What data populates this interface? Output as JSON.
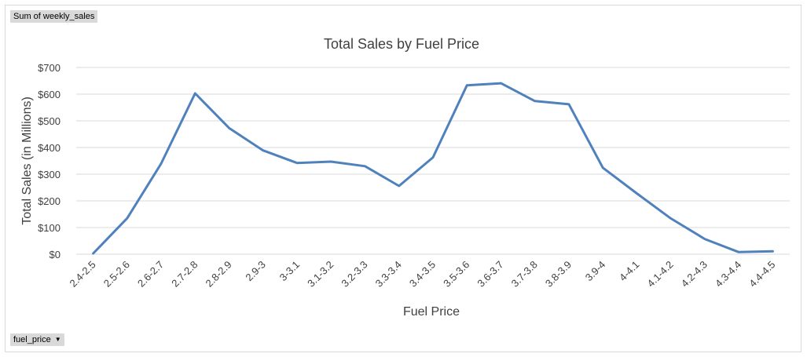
{
  "pivot": {
    "values_button": "Sum of weekly_sales",
    "field_button": "fuel_price",
    "dropdown_icon": "chevron-down-icon"
  },
  "chart_data": {
    "type": "line",
    "title": "Total Sales by Fuel Price",
    "xlabel": "Fuel Price",
    "ylabel": "Total Sales (in Millions)",
    "ylim": [
      0,
      700
    ],
    "yticks": [
      0,
      100,
      200,
      300,
      400,
      500,
      600,
      700
    ],
    "ytick_labels": [
      "$0",
      "$100",
      "$200",
      "$300",
      "$400",
      "$500",
      "$600",
      "$700"
    ],
    "grid": true,
    "legend": "none",
    "categories": [
      "2.4-2.5",
      "2.5-2.6",
      "2.6-2.7",
      "2.7-2.8",
      "2.8-2.9",
      "2.9-3",
      "3-3.1",
      "3.1-3.2",
      "3.2-3.3",
      "3.3-3.4",
      "3.4-3.5",
      "3.5-3.6",
      "3.6-3.7",
      "3.7-3.8",
      "3.8-3.9",
      "3.9-4",
      "4-4.1",
      "4.1-4.2",
      "4.2-4.3",
      "4.3-4.4",
      "4.4-4.5"
    ],
    "series": [
      {
        "values": [
          3,
          135,
          340,
          603,
          473,
          389,
          342,
          347,
          330,
          256,
          363,
          633,
          641,
          574,
          562,
          324,
          228,
          134,
          57,
          8,
          11
        ],
        "color": "#4f81bd"
      }
    ]
  }
}
